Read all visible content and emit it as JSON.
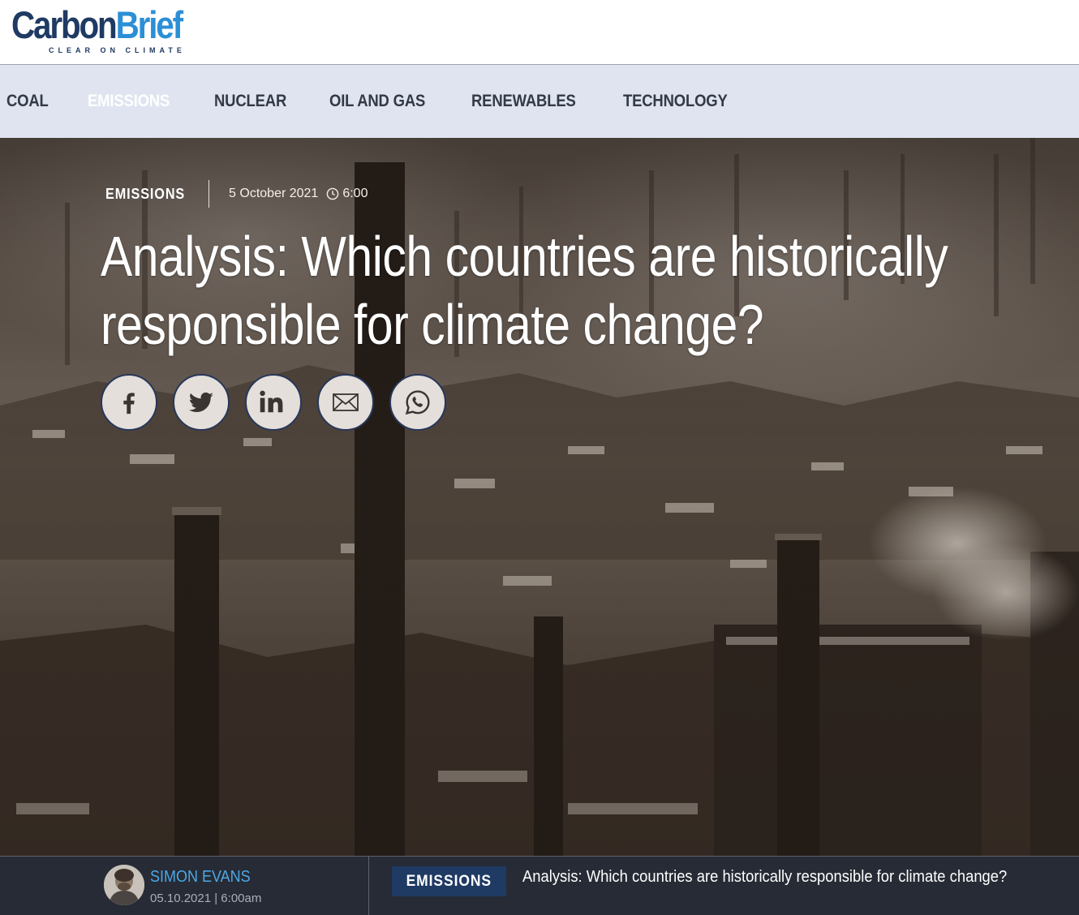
{
  "header": {
    "logo": {
      "word1": "Carbon",
      "word2": "Brief",
      "tagline": "CLEAR ON CLIMATE"
    }
  },
  "nav": {
    "items": [
      {
        "label": "COAL",
        "active": false
      },
      {
        "label": "EMISSIONS",
        "active": true
      },
      {
        "label": "NUCLEAR",
        "active": false
      },
      {
        "label": "OIL AND GAS",
        "active": false
      },
      {
        "label": "RENEWABLES",
        "active": false
      },
      {
        "label": "TECHNOLOGY",
        "active": false
      }
    ]
  },
  "article": {
    "category": "EMISSIONS",
    "date": "5 October 2021",
    "time": "6:00",
    "title_line1": "Analysis: Which countries are historically",
    "title_line2": "responsible for climate change?",
    "share": [
      {
        "name": "facebook",
        "icon": "facebook-icon"
      },
      {
        "name": "twitter",
        "icon": "twitter-icon"
      },
      {
        "name": "linkedin",
        "icon": "linkedin-icon"
      },
      {
        "name": "email",
        "icon": "email-icon"
      },
      {
        "name": "whatsapp",
        "icon": "whatsapp-icon"
      }
    ]
  },
  "byline": {
    "author": "SIMON EVANS",
    "datetime": "05.10.2021 | 6:00am",
    "tag": "EMISSIONS",
    "title": "Analysis: Which countries are historically responsible for climate change?"
  },
  "colors": {
    "brand_dark": "#1f3a63",
    "brand_light": "#2b8fd6",
    "nav_bg": "#dfe4f0",
    "byline_bg": "#262b35",
    "author_link": "#4ca7e6"
  }
}
